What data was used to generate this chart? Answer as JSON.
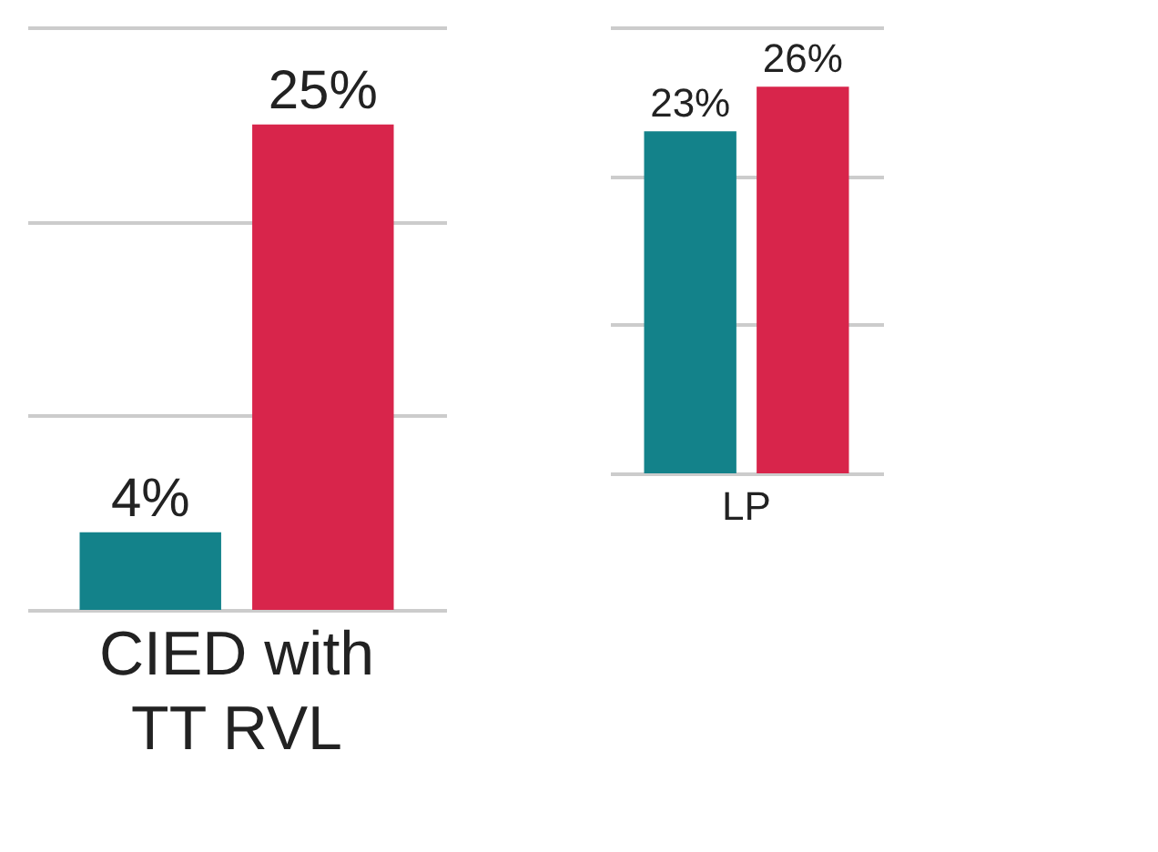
{
  "chart_data": [
    {
      "type": "bar",
      "categories": [
        "CIED with TT RVL"
      ],
      "ylim": [
        0,
        30
      ],
      "yticks": [
        {
          "value": 0,
          "label": null
        },
        {
          "value": 10,
          "label": null
        },
        {
          "value": 20,
          "label": null
        },
        {
          "value": 30,
          "label": null
        }
      ],
      "grid": "y",
      "tick_labels": "x",
      "legend": false,
      "series": [
        {
          "color": "#13828a",
          "values": [
            4
          ],
          "value_labels": [
            "4%"
          ]
        },
        {
          "color": "#d8254b",
          "values": [
            25
          ],
          "value_labels": [
            "25%"
          ]
        }
      ]
    },
    {
      "type": "bar",
      "categories": [
        "LP"
      ],
      "ylim": [
        0,
        30
      ],
      "yticks": [
        {
          "value": 0,
          "label": null
        },
        {
          "value": 10,
          "label": null
        },
        {
          "value": 20,
          "label": null
        },
        {
          "value": 30,
          "label": null
        }
      ],
      "grid": "y",
      "tick_labels": "x",
      "legend": false,
      "series": [
        {
          "color": "#13828a",
          "values": [
            23
          ],
          "value_labels": [
            "23%"
          ]
        },
        {
          "color": "#d8254b",
          "values": [
            26
          ],
          "value_labels": [
            "26%"
          ]
        }
      ]
    }
  ]
}
